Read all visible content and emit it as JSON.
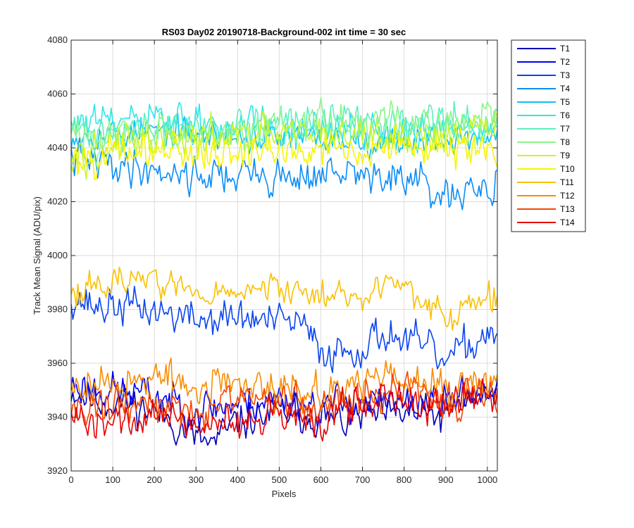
{
  "chart_data": {
    "type": "line",
    "title": "RS03 Day02 20190718-Background-002 int time = 30 sec",
    "xlabel": "Pixels",
    "ylabel": "Track Mean Signal (ADU/pix)",
    "xlim": [
      0,
      1024
    ],
    "ylim": [
      3920,
      4080
    ],
    "xticks": [
      0,
      100,
      200,
      300,
      400,
      500,
      600,
      700,
      800,
      900,
      1000
    ],
    "yticks": [
      3920,
      3940,
      3960,
      3980,
      4000,
      4020,
      4040,
      4060,
      4080
    ],
    "grid": true,
    "legend_position": "outside-top-right",
    "x_step": 4,
    "series": [
      {
        "name": "T1",
        "color": "#0000B8",
        "noise": 5,
        "seed": 11,
        "anchors": [
          [
            0,
            3950
          ],
          [
            60,
            3946
          ],
          [
            150,
            3945
          ],
          [
            230,
            3940
          ],
          [
            300,
            3932
          ],
          [
            340,
            3930
          ],
          [
            400,
            3938
          ],
          [
            450,
            3940
          ],
          [
            520,
            3942
          ],
          [
            600,
            3940
          ],
          [
            650,
            3938
          ],
          [
            700,
            3941
          ],
          [
            760,
            3940
          ],
          [
            820,
            3942
          ],
          [
            880,
            3940
          ],
          [
            950,
            3946
          ],
          [
            1024,
            3950
          ]
        ]
      },
      {
        "name": "T2",
        "color": "#0000F0",
        "noise": 5,
        "seed": 23,
        "anchors": [
          [
            0,
            3952
          ],
          [
            100,
            3950
          ],
          [
            200,
            3948
          ],
          [
            300,
            3943
          ],
          [
            400,
            3945
          ],
          [
            500,
            3947
          ],
          [
            600,
            3944
          ],
          [
            700,
            3946
          ],
          [
            800,
            3944
          ],
          [
            900,
            3946
          ],
          [
            1024,
            3952
          ]
        ]
      },
      {
        "name": "T3",
        "color": "#0B45F0",
        "noise": 5,
        "seed": 37,
        "anchors": [
          [
            0,
            3985
          ],
          [
            60,
            3981
          ],
          [
            150,
            3981
          ],
          [
            250,
            3978
          ],
          [
            300,
            3976
          ],
          [
            400,
            3977
          ],
          [
            500,
            3975
          ],
          [
            550,
            3975
          ],
          [
            600,
            3964
          ],
          [
            700,
            3966
          ],
          [
            760,
            3972
          ],
          [
            800,
            3968
          ],
          [
            850,
            3966
          ],
          [
            900,
            3960
          ],
          [
            950,
            3966
          ],
          [
            1024,
            3974
          ]
        ]
      },
      {
        "name": "T4",
        "color": "#0A8CF5",
        "noise": 5,
        "seed": 41,
        "anchors": [
          [
            0,
            4036
          ],
          [
            100,
            4034
          ],
          [
            200,
            4032
          ],
          [
            300,
            4030
          ],
          [
            400,
            4030
          ],
          [
            500,
            4029
          ],
          [
            600,
            4030
          ],
          [
            700,
            4030
          ],
          [
            800,
            4028
          ],
          [
            850,
            4026
          ],
          [
            900,
            4020
          ],
          [
            960,
            4022
          ],
          [
            1024,
            4027
          ]
        ]
      },
      {
        "name": "T5",
        "color": "#10BEF5",
        "noise": 4,
        "seed": 53,
        "anchors": [
          [
            0,
            4045
          ],
          [
            200,
            4046
          ],
          [
            400,
            4044
          ],
          [
            600,
            4043
          ],
          [
            800,
            4043
          ],
          [
            1024,
            4044
          ]
        ]
      },
      {
        "name": "T6",
        "color": "#30E6E6",
        "noise": 5,
        "seed": 61,
        "anchors": [
          [
            0,
            4049
          ],
          [
            200,
            4050
          ],
          [
            400,
            4048
          ],
          [
            600,
            4046
          ],
          [
            800,
            4046
          ],
          [
            1024,
            4047
          ]
        ]
      },
      {
        "name": "T7",
        "color": "#5CF0BE",
        "noise": 5,
        "seed": 71,
        "anchors": [
          [
            0,
            4046
          ],
          [
            200,
            4047
          ],
          [
            400,
            4048
          ],
          [
            600,
            4049
          ],
          [
            800,
            4049
          ],
          [
            1024,
            4050
          ]
        ]
      },
      {
        "name": "T8",
        "color": "#8CF58C",
        "noise": 5,
        "seed": 83,
        "anchors": [
          [
            0,
            4044
          ],
          [
            200,
            4045
          ],
          [
            400,
            4047
          ],
          [
            600,
            4050
          ],
          [
            800,
            4049
          ],
          [
            1024,
            4051
          ]
        ]
      },
      {
        "name": "T9",
        "color": "#C8F528",
        "noise": 5,
        "seed": 97,
        "anchors": [
          [
            0,
            4040
          ],
          [
            200,
            4042
          ],
          [
            400,
            4044
          ],
          [
            600,
            4045
          ],
          [
            800,
            4044
          ],
          [
            1024,
            4046
          ]
        ]
      },
      {
        "name": "T10",
        "color": "#F5F500",
        "noise": 5,
        "seed": 101,
        "anchors": [
          [
            0,
            4036
          ],
          [
            200,
            4039
          ],
          [
            400,
            4038
          ],
          [
            600,
            4040
          ],
          [
            800,
            4040
          ],
          [
            1024,
            4040
          ]
        ]
      },
      {
        "name": "T11",
        "color": "#FAC000",
        "noise": 4,
        "seed": 113,
        "anchors": [
          [
            0,
            3988
          ],
          [
            80,
            3988
          ],
          [
            150,
            3993
          ],
          [
            250,
            3989
          ],
          [
            300,
            3985
          ],
          [
            400,
            3986
          ],
          [
            500,
            3988
          ],
          [
            600,
            3985
          ],
          [
            700,
            3986
          ],
          [
            760,
            3990
          ],
          [
            820,
            3986
          ],
          [
            870,
            3980
          ],
          [
            920,
            3975
          ],
          [
            960,
            3982
          ],
          [
            1024,
            3985
          ]
        ]
      },
      {
        "name": "T12",
        "color": "#FA8C00",
        "noise": 5,
        "seed": 127,
        "anchors": [
          [
            0,
            3952
          ],
          [
            100,
            3953
          ],
          [
            200,
            3955
          ],
          [
            300,
            3950
          ],
          [
            400,
            3952
          ],
          [
            500,
            3952
          ],
          [
            600,
            3948
          ],
          [
            700,
            3954
          ],
          [
            800,
            3955
          ],
          [
            900,
            3950
          ],
          [
            1024,
            3954
          ]
        ]
      },
      {
        "name": "T13",
        "color": "#F54600",
        "noise": 5,
        "seed": 131,
        "anchors": [
          [
            0,
            3944
          ],
          [
            100,
            3944
          ],
          [
            200,
            3945
          ],
          [
            300,
            3942
          ],
          [
            400,
            3946
          ],
          [
            500,
            3946
          ],
          [
            600,
            3944
          ],
          [
            700,
            3948
          ],
          [
            800,
            3950
          ],
          [
            900,
            3946
          ],
          [
            1024,
            3950
          ]
        ]
      },
      {
        "name": "T14",
        "color": "#E60000",
        "noise": 5,
        "seed": 139,
        "anchors": [
          [
            0,
            3938
          ],
          [
            100,
            3938
          ],
          [
            200,
            3940
          ],
          [
            300,
            3938
          ],
          [
            400,
            3938
          ],
          [
            500,
            3940
          ],
          [
            600,
            3940
          ],
          [
            700,
            3945
          ],
          [
            800,
            3947
          ],
          [
            900,
            3946
          ],
          [
            1024,
            3949
          ]
        ]
      }
    ]
  }
}
